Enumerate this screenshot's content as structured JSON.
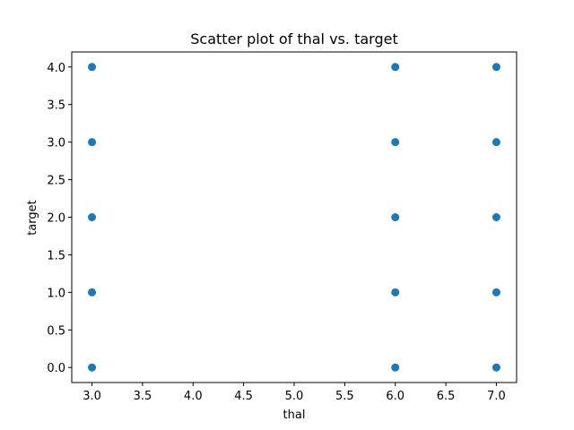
{
  "chart_data": {
    "type": "scatter",
    "title": "Scatter plot of thal vs. target",
    "xlabel": "thal",
    "ylabel": "target",
    "xlim": [
      2.8,
      7.2
    ],
    "ylim": [
      -0.2,
      4.2
    ],
    "xticks": [
      "3.0",
      "3.5",
      "4.0",
      "4.5",
      "5.0",
      "5.5",
      "6.0",
      "6.5",
      "7.0"
    ],
    "yticks": [
      "0.0",
      "0.5",
      "1.0",
      "1.5",
      "2.0",
      "2.5",
      "3.0",
      "3.5",
      "4.0"
    ],
    "grid": false,
    "marker_color": "#1f77b4",
    "points": [
      {
        "x": 3,
        "y": 0
      },
      {
        "x": 3,
        "y": 1
      },
      {
        "x": 3,
        "y": 2
      },
      {
        "x": 3,
        "y": 3
      },
      {
        "x": 3,
        "y": 4
      },
      {
        "x": 6,
        "y": 0
      },
      {
        "x": 6,
        "y": 1
      },
      {
        "x": 6,
        "y": 2
      },
      {
        "x": 6,
        "y": 3
      },
      {
        "x": 6,
        "y": 4
      },
      {
        "x": 7,
        "y": 0
      },
      {
        "x": 7,
        "y": 1
      },
      {
        "x": 7,
        "y": 2
      },
      {
        "x": 7,
        "y": 3
      },
      {
        "x": 7,
        "y": 4
      }
    ]
  }
}
